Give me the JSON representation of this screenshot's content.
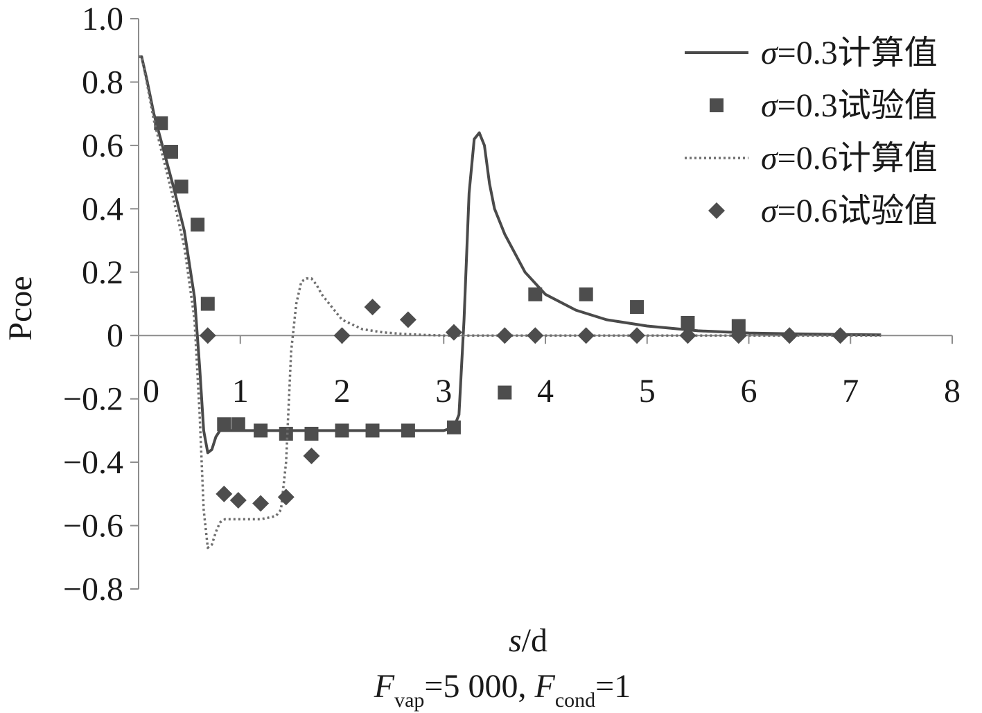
{
  "chart_data": {
    "type": "line",
    "xlabel": {
      "var": "s",
      "rest": "/d"
    },
    "ylabel": "Pcoe",
    "condition": {
      "f1": "F",
      "f1_sub": "vap",
      "f1_val": "=5 000,  ",
      "f2": "F",
      "f2_sub": "cond",
      "f2_val": "=1"
    },
    "xlim": [
      0,
      8
    ],
    "ylim": [
      -0.8,
      1.0
    ],
    "xticks": [
      "0",
      "1",
      "2",
      "3",
      "4",
      "5",
      "6",
      "7",
      "8"
    ],
    "yticks": [
      "1.0",
      "0.8",
      "0.6",
      "0.4",
      "0.2",
      "0",
      "−0.2",
      "−0.4",
      "−0.6",
      "−0.8"
    ],
    "legend_position": "top-right",
    "colors": {
      "series": "#4a4a4a",
      "markers": "#4d4d4d",
      "axis": "#8c8c8c"
    },
    "series": [
      {
        "name": "=0.3计算值",
        "symbol": "σ",
        "style": "solid-line",
        "x": [
          0.0,
          0.03,
          0.08,
          0.15,
          0.25,
          0.35,
          0.45,
          0.55,
          0.6,
          0.64,
          0.68,
          0.72,
          0.76,
          0.8,
          0.9,
          1.2,
          1.6,
          2.0,
          2.5,
          3.0,
          3.1,
          3.15,
          3.2,
          3.25,
          3.3,
          3.35,
          3.4,
          3.45,
          3.5,
          3.6,
          3.8,
          4.0,
          4.3,
          4.6,
          5.0,
          5.5,
          6.0,
          6.5,
          7.0,
          7.3
        ],
        "y": [
          0.88,
          0.88,
          0.81,
          0.7,
          0.58,
          0.46,
          0.33,
          0.12,
          -0.1,
          -0.3,
          -0.37,
          -0.36,
          -0.32,
          -0.3,
          -0.3,
          -0.3,
          -0.3,
          -0.3,
          -0.3,
          -0.3,
          -0.29,
          -0.25,
          0.05,
          0.45,
          0.62,
          0.64,
          0.6,
          0.48,
          0.4,
          0.32,
          0.2,
          0.13,
          0.08,
          0.05,
          0.03,
          0.015,
          0.008,
          0.005,
          0.003,
          0.002
        ]
      },
      {
        "name": "=0.3试验值",
        "symbol": "σ",
        "style": "square-marker",
        "x": [
          0.22,
          0.32,
          0.42,
          0.58,
          0.68,
          0.84,
          0.98,
          1.2,
          1.45,
          1.7,
          2.0,
          2.3,
          2.65,
          3.1,
          3.6,
          3.9,
          4.4,
          4.9,
          5.4,
          5.9
        ],
        "y": [
          0.67,
          0.58,
          0.47,
          0.35,
          0.1,
          -0.28,
          -0.28,
          -0.3,
          -0.31,
          -0.31,
          -0.3,
          -0.3,
          -0.3,
          -0.29,
          -0.18,
          0.13,
          0.13,
          0.09,
          0.04,
          0.03
        ]
      },
      {
        "name": "=0.6计算值",
        "symbol": "σ",
        "style": "dotted-line",
        "x": [
          0.0,
          0.03,
          0.08,
          0.15,
          0.25,
          0.35,
          0.45,
          0.55,
          0.6,
          0.64,
          0.68,
          0.72,
          0.76,
          0.8,
          0.85,
          1.0,
          1.2,
          1.35,
          1.4,
          1.45,
          1.5,
          1.55,
          1.6,
          1.65,
          1.7,
          1.75,
          1.8,
          1.9,
          2.0,
          2.2,
          2.4,
          2.6,
          2.8,
          3.0,
          3.5,
          4.0,
          5.0,
          6.0,
          7.0,
          7.3
        ],
        "y": [
          0.88,
          0.88,
          0.8,
          0.68,
          0.55,
          0.42,
          0.28,
          0.05,
          -0.25,
          -0.55,
          -0.67,
          -0.66,
          -0.62,
          -0.59,
          -0.58,
          -0.58,
          -0.58,
          -0.57,
          -0.55,
          -0.4,
          -0.05,
          0.1,
          0.17,
          0.18,
          0.18,
          0.16,
          0.13,
          0.09,
          0.05,
          0.02,
          0.01,
          0.005,
          0.002,
          0.0,
          0.0,
          0.0,
          0.0,
          0.0,
          0.0,
          0.0
        ]
      },
      {
        "name": "=0.6试验值",
        "symbol": "σ",
        "style": "diamond-marker",
        "x": [
          0.68,
          0.84,
          0.98,
          1.2,
          1.45,
          1.7,
          2.0,
          2.3,
          2.65,
          3.1,
          3.6,
          3.9,
          4.4,
          4.9,
          5.4,
          5.9,
          6.4,
          6.9
        ],
        "y": [
          0.0,
          -0.5,
          -0.52,
          -0.53,
          -0.51,
          -0.38,
          0.0,
          0.09,
          0.05,
          0.01,
          0.0,
          0.0,
          0.0,
          0.0,
          0.0,
          0.0,
          0.0,
          0.0
        ]
      }
    ]
  }
}
